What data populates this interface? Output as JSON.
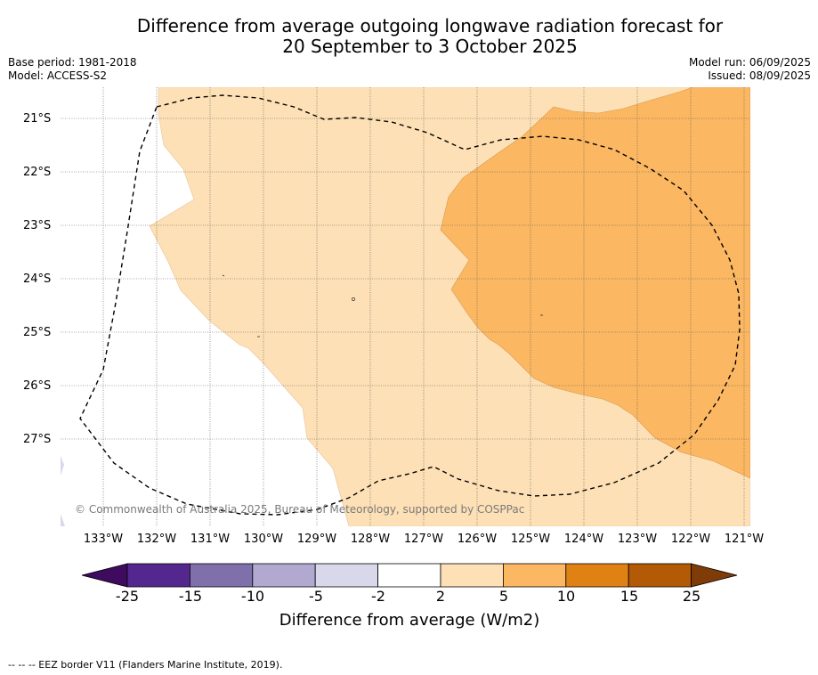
{
  "title_line1": "Difference from average outgoing longwave radiation forecast for",
  "title_line2": "20 September to 3 October 2025",
  "base_period": "Base period: 1981-2018",
  "model": "Model: ACCESS-S2",
  "model_run": "Model run: 06/09/2025",
  "issued": "Issued: 08/09/2025",
  "copyright": "© Commonwealth of Australia 2025, Bureau of Meteorology, supported by COSPPac",
  "lat_labels": [
    "21°S",
    "22°S",
    "23°S",
    "24°S",
    "25°S",
    "26°S",
    "27°S"
  ],
  "lon_labels": [
    "133°W",
    "132°W",
    "131°W",
    "130°W",
    "129°W",
    "128°W",
    "127°W",
    "126°W",
    "125°W",
    "124°W",
    "123°W",
    "122°W",
    "121°W"
  ],
  "colorbar": {
    "title": "Difference from average (W/m2)",
    "tick_labels": [
      "-25",
      "-15",
      "-10",
      "-5",
      "-2",
      "2",
      "5",
      "10",
      "15",
      "25"
    ],
    "colors": [
      "#3f0b5e",
      "#54278f",
      "#7f70ac",
      "#b1a9d0",
      "#d8d8ea",
      "#ffffff",
      "#fde0b5",
      "#fbb762",
      "#e08213",
      "#b25a06",
      "#7f3b08"
    ]
  },
  "footer": "--  --  -- EEZ border V11 (Flanders Marine Institute, 2019).",
  "map_colors": {
    "light_orange": "#fde0b5",
    "orange": "#fbb762",
    "land_grey": "#d8d8ea"
  }
}
